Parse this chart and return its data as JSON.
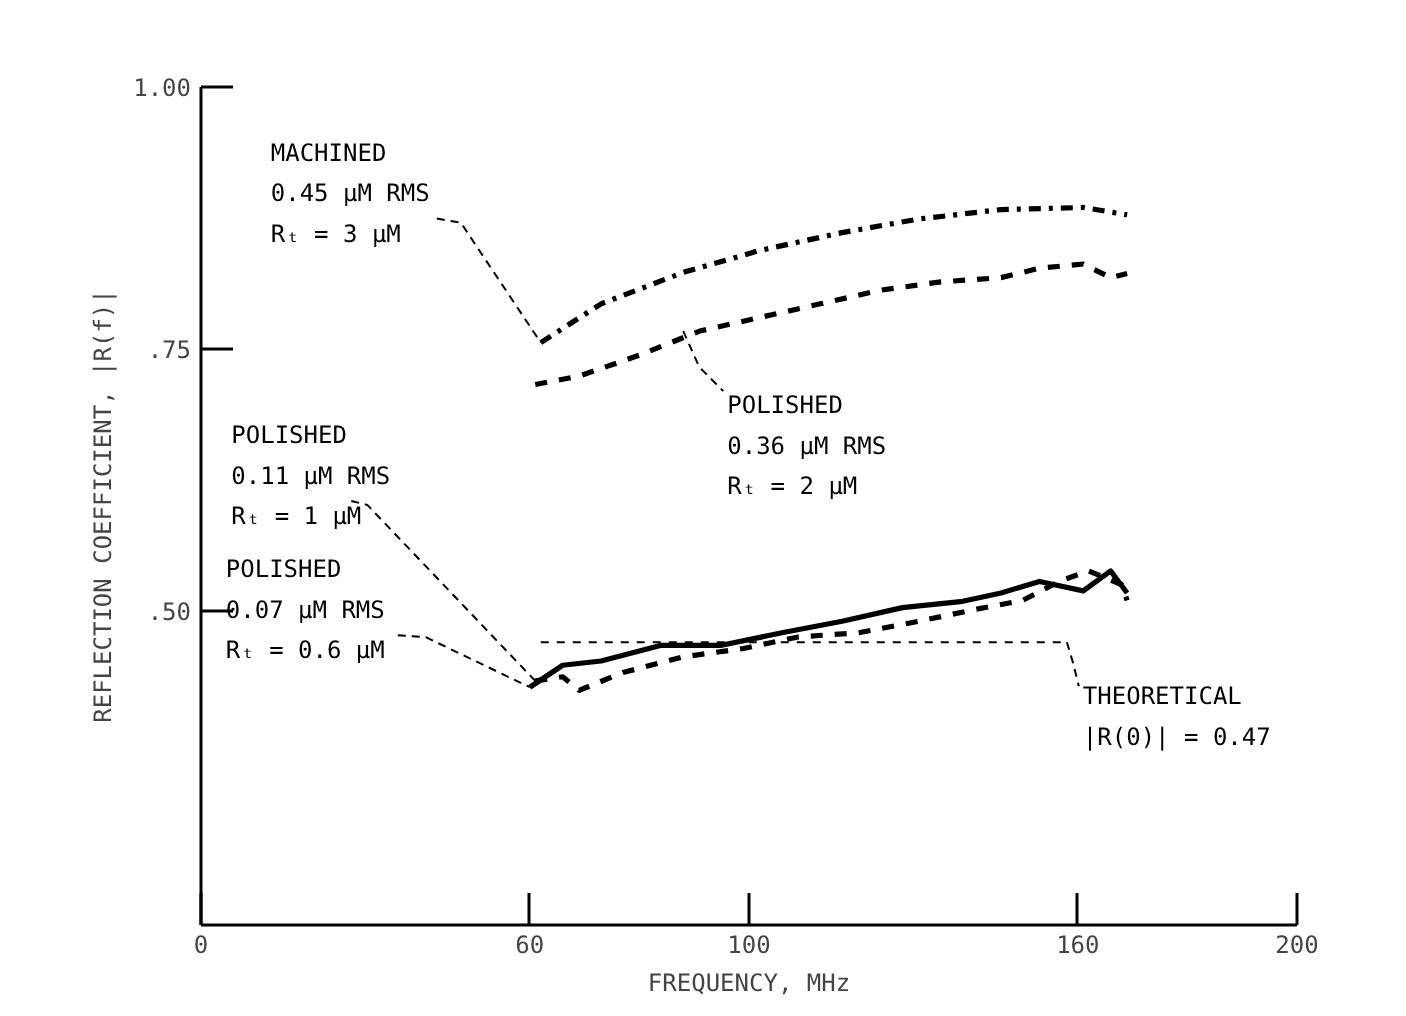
{
  "chart_data": {
    "type": "line",
    "xlabel": "FREQUENCY, MHz",
    "ylabel": "REFLECTION COEFFICIENT, |R(f)|",
    "xlim": [
      0,
      200
    ],
    "ylim": [
      0.2,
      1.0
    ],
    "xticks": [
      0,
      60,
      100,
      160,
      200
    ],
    "yticks": [
      {
        "value": 0.5,
        "label": ".50"
      },
      {
        "value": 0.75,
        "label": ".75"
      },
      {
        "value": 1.0,
        "label": "1.00"
      }
    ],
    "grid": false,
    "marker": "none",
    "series": [
      {
        "color": "#000000",
        "line_style": "dashdot",
        "x": [
          62,
          73,
          88,
          102,
          117,
          131,
          146,
          161,
          169
        ],
        "values": [
          0.756,
          0.793,
          0.823,
          0.844,
          0.861,
          0.874,
          0.883,
          0.885,
          0.878
        ]
      },
      {
        "color": "#000000",
        "line_style": "dashed",
        "x": [
          61,
          69,
          80,
          91,
          102,
          113,
          124,
          135,
          146,
          153,
          161,
          166,
          169
        ],
        "values": [
          0.716,
          0.724,
          0.744,
          0.767,
          0.78,
          0.793,
          0.806,
          0.814,
          0.818,
          0.827,
          0.831,
          0.818,
          0.822
        ]
      },
      {
        "color": "#000000",
        "line_style": "dashed",
        "x": [
          61,
          66,
          69,
          77,
          88,
          99,
          109,
          120,
          131,
          142,
          150,
          157,
          162,
          168,
          169
        ],
        "values": [
          0.433,
          0.437,
          0.424,
          0.441,
          0.456,
          0.464,
          0.475,
          0.479,
          0.49,
          0.502,
          0.51,
          0.529,
          0.538,
          0.525,
          0.51
        ]
      },
      {
        "color": "#000000",
        "line_style": "solid",
        "x": [
          60,
          66,
          73,
          84,
          95,
          106,
          117,
          128,
          139,
          146,
          153,
          161,
          166,
          169
        ],
        "values": [
          0.427,
          0.448,
          0.452,
          0.467,
          0.467,
          0.479,
          0.49,
          0.503,
          0.509,
          0.517,
          0.528,
          0.519,
          0.538,
          0.517
        ]
      },
      {
        "color": "#000000",
        "line_style": "dashed",
        "x": [
          62,
          158
        ],
        "values": [
          0.47,
          0.47
        ]
      }
    ],
    "annotations": [
      {
        "text": "MACHINED\n0.45 µM RMS\nRₜ = 3 µM",
        "x": 62,
        "y": 0.756
      },
      {
        "text": "POLISHED\n0.36 µM RMS\nRₜ = 2 µM",
        "x": 88,
        "y": 0.767
      },
      {
        "text": "POLISHED\n0.11 µM RMS\nRₜ = 1 µM",
        "x": 61,
        "y": 0.433
      },
      {
        "text": "POLISHED\n0.07 µM RMS\nRₜ = 0.6 µM",
        "x": 60,
        "y": 0.427
      },
      {
        "text": "THEORETICAL\n|R(0)| = 0.47",
        "x": 158,
        "y": 0.47
      }
    ]
  }
}
